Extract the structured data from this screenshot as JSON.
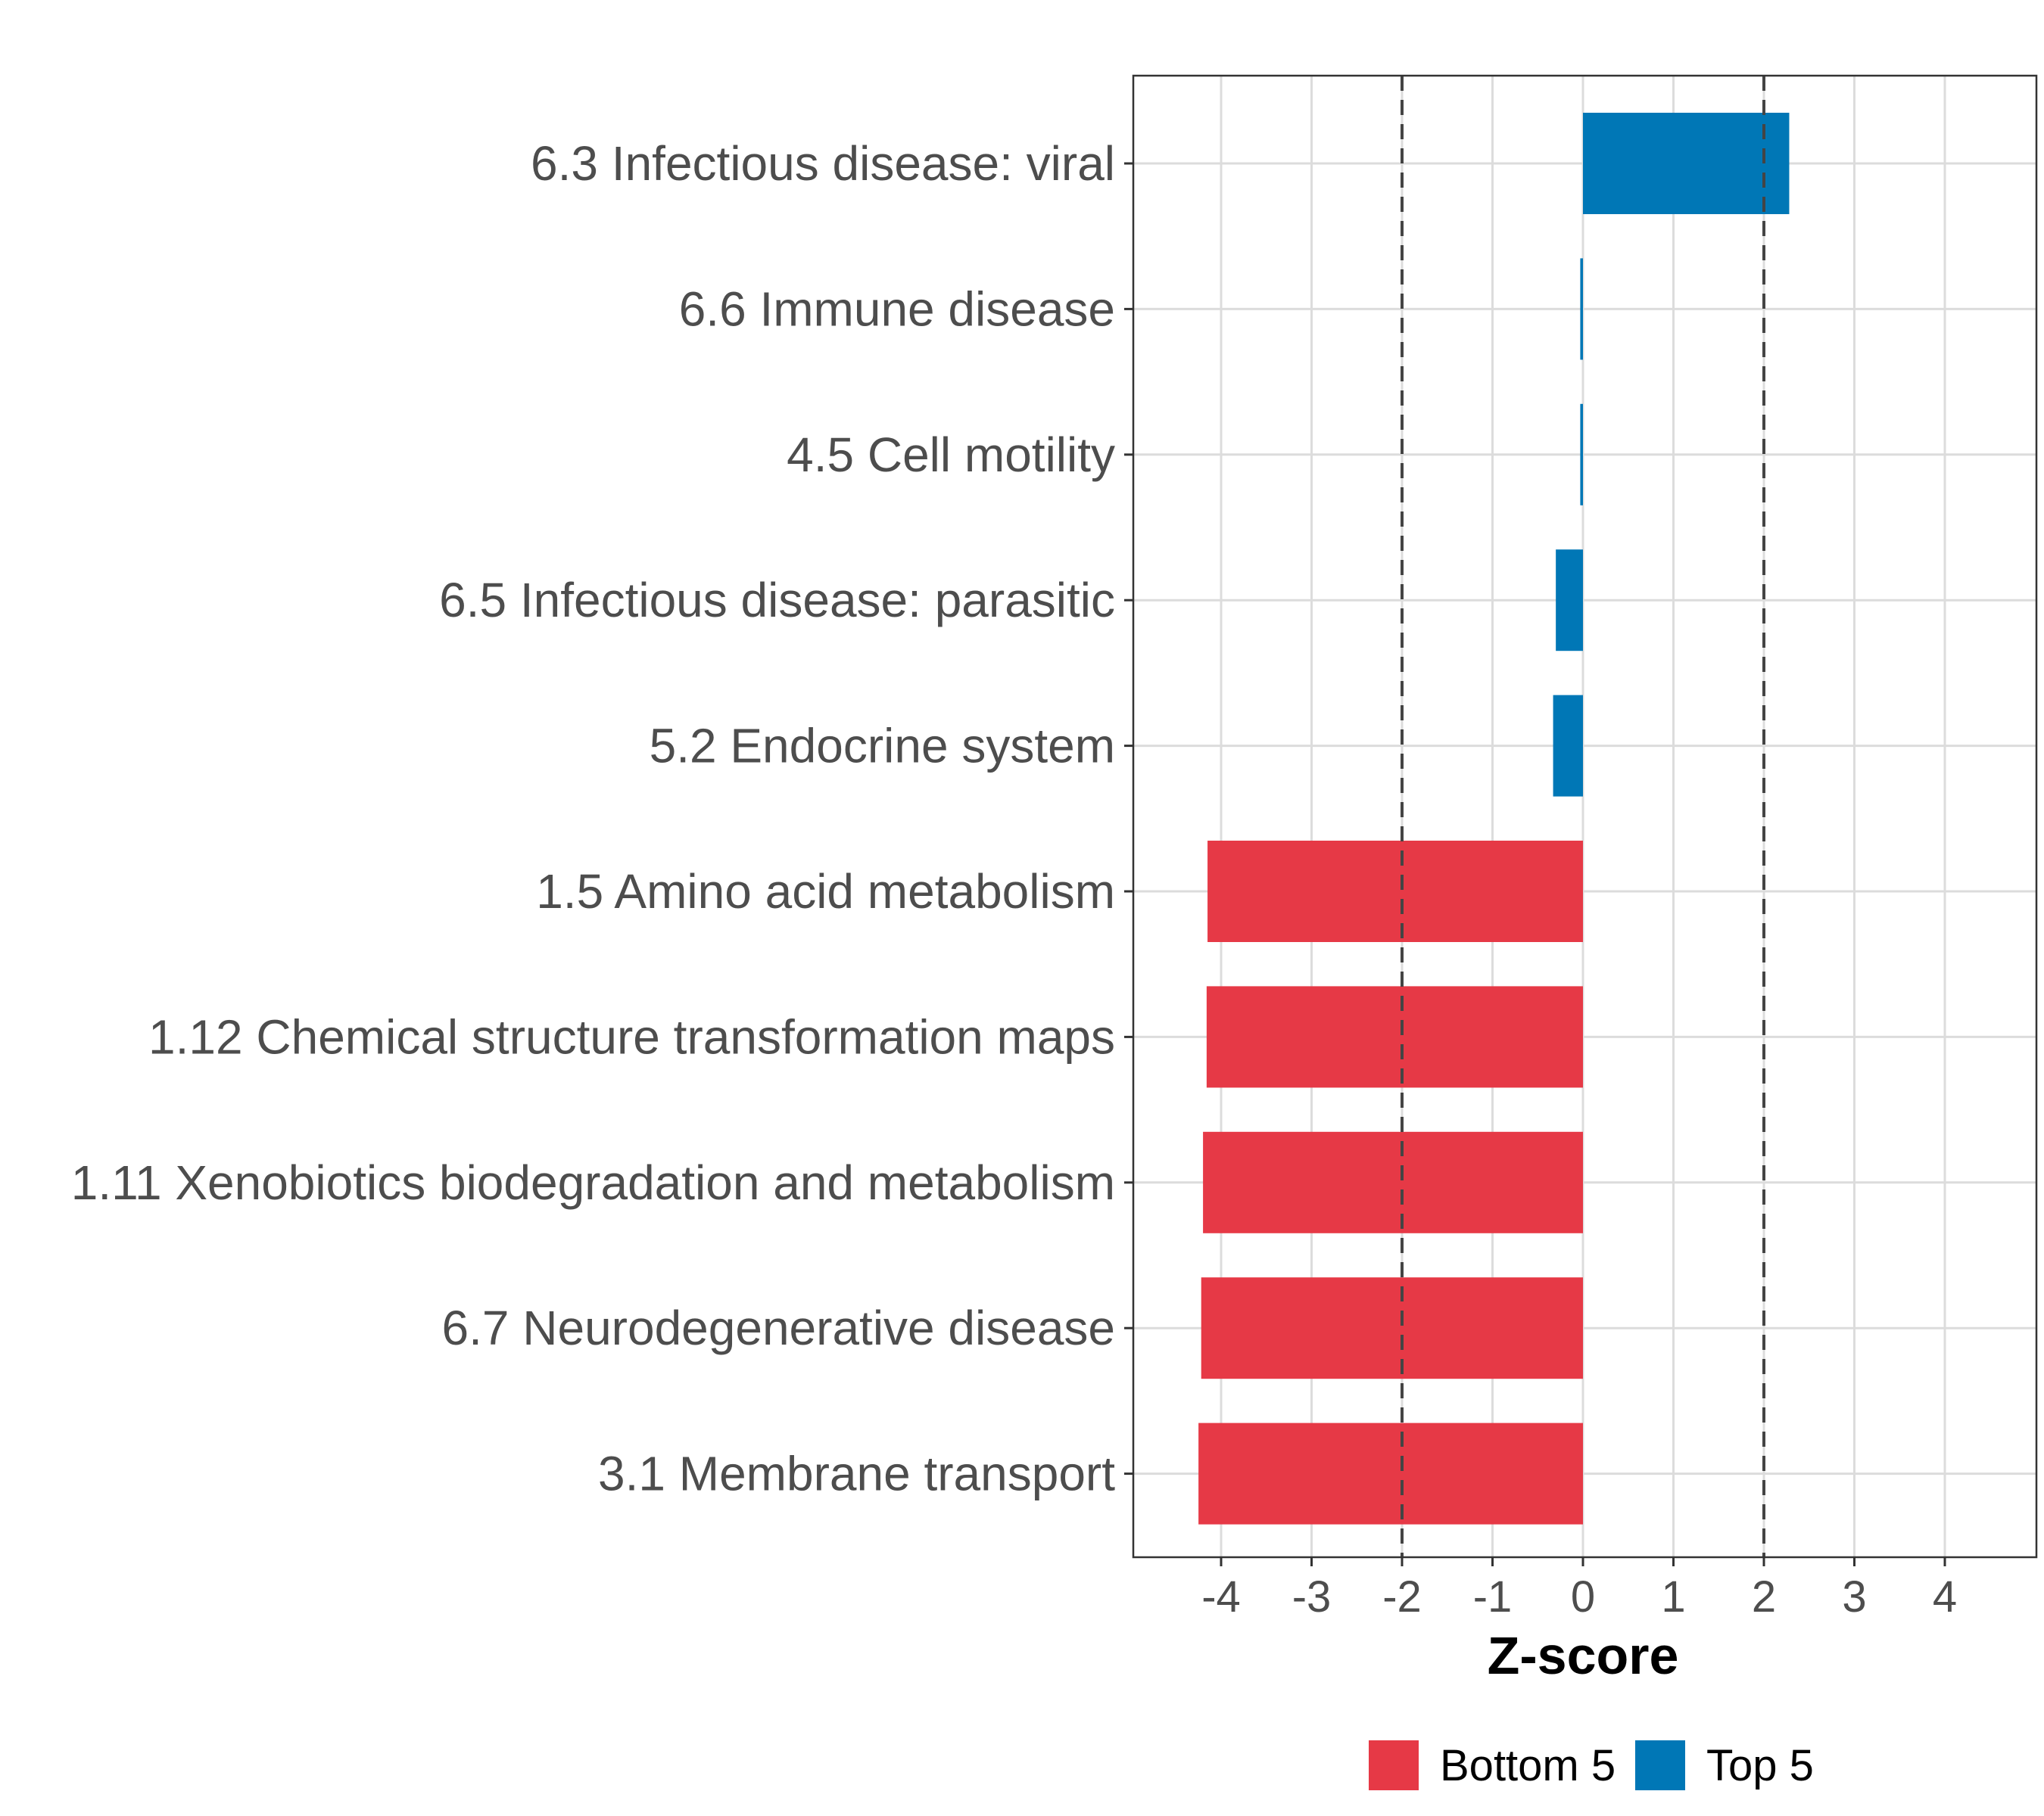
{
  "chart_data": {
    "type": "bar",
    "orientation": "horizontal",
    "title": "",
    "xlabel": "Z-score",
    "ylabel": "",
    "xlim": [
      -5,
      5
    ],
    "xticks": [
      -4,
      -3,
      -2,
      -1,
      0,
      1,
      2,
      3,
      4
    ],
    "reference_lines": [
      -2,
      2
    ],
    "grid": true,
    "legend_position": "bottom",
    "categories": [
      "6.3 Infectious disease: viral",
      "6.6 Immune disease",
      "4.5 Cell motility",
      "6.5 Infectious disease: parasitic",
      "5.2 Endocrine system",
      "1.5 Amino acid metabolism",
      "1.12 Chemical structure transformation maps",
      "1.11 Xenobiotics biodegradation and metabolism",
      "6.7 Neurodegenerative disease",
      "3.1 Membrane transport"
    ],
    "values": [
      2.28,
      -0.03,
      -0.03,
      -0.3,
      -0.33,
      -4.15,
      -4.16,
      -4.2,
      -4.22,
      -4.25
    ],
    "groups": [
      "Top 5",
      "Top 5",
      "Top 5",
      "Top 5",
      "Top 5",
      "Bottom 5",
      "Bottom 5",
      "Bottom 5",
      "Bottom 5",
      "Bottom 5"
    ],
    "legend": [
      {
        "name": "Bottom 5",
        "color": "#e63946"
      },
      {
        "name": "Top 5",
        "color": "#0077b6"
      }
    ]
  }
}
